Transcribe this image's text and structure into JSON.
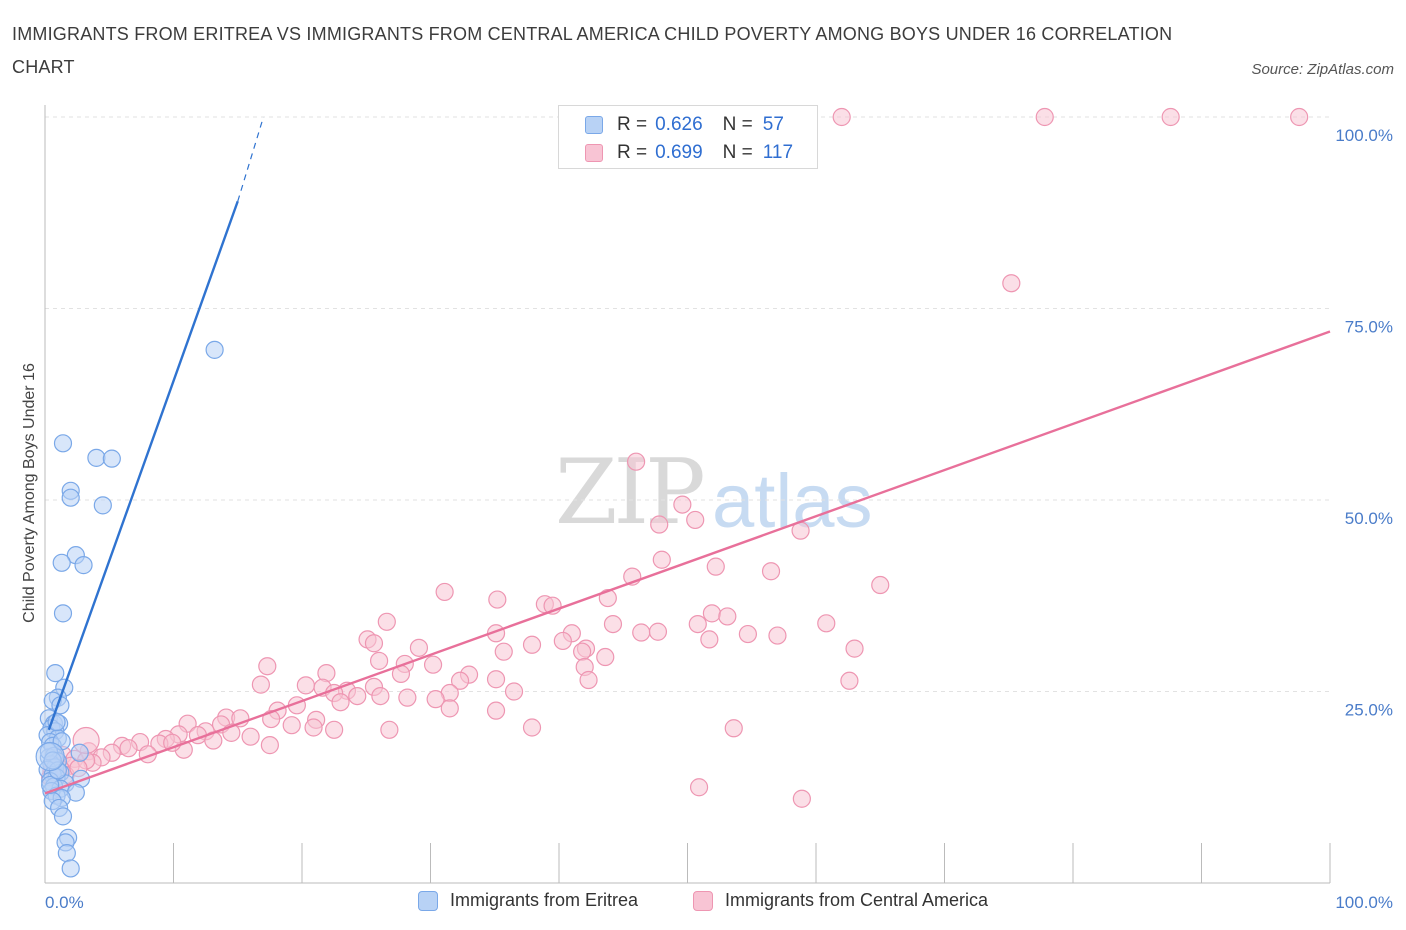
{
  "title": "IMMIGRANTS FROM ERITREA VS IMMIGRANTS FROM CENTRAL AMERICA CHILD POVERTY AMONG BOYS UNDER 16 CORRELATION CHART",
  "source": "Source: ZipAtlas.com",
  "watermark": {
    "zip": "ZIP",
    "atlas": "atlas"
  },
  "legend": {
    "r_label": "R =",
    "n_label": "N =",
    "series": [
      {
        "name": "Immigrants from Eritrea",
        "r": "0.626",
        "n": "57",
        "fill": "#b8d2f5",
        "stroke": "#7aa8e8"
      },
      {
        "name": "Immigrants from Central America",
        "r": "0.699",
        "n": "117",
        "fill": "#f8c4d4",
        "stroke": "#ee96b2"
      }
    ]
  },
  "colors": {
    "blue_line": "#2f73d0",
    "pink_line": "#e8709a",
    "tick_text": "#4a7cc9",
    "grid": "#e2e2e2"
  },
  "chart_data": {
    "type": "scatter",
    "title": "IMMIGRANTS FROM ERITREA VS IMMIGRANTS FROM CENTRAL AMERICA CHILD POVERTY AMONG BOYS UNDER 16 CORRELATION CHART",
    "xlabel": "",
    "ylabel": "Child Poverty Among Boys Under 16",
    "xlim": [
      0,
      100
    ],
    "ylim": [
      0,
      100
    ],
    "x_tick_labels": [
      "0.0%",
      "100.0%"
    ],
    "y_tick_labels": [
      "25.0%",
      "50.0%",
      "75.0%",
      "100.0%"
    ],
    "y_ticks": [
      25,
      50,
      75,
      100
    ],
    "series": [
      {
        "name": "Immigrants from Eritrea",
        "trend": {
          "x0": 0.3,
          "y0": 20.0,
          "x1": 15.0,
          "y1": 89.0,
          "dash_to_x": 17.0,
          "dash_to_y": 100.0
        },
        "points": [
          [
            13.2,
            69.6
          ],
          [
            1.4,
            57.4
          ],
          [
            4.0,
            55.5
          ],
          [
            5.2,
            55.4
          ],
          [
            2.0,
            51.2
          ],
          [
            2.0,
            50.3
          ],
          [
            4.5,
            49.3
          ],
          [
            2.4,
            42.8
          ],
          [
            1.3,
            41.8
          ],
          [
            3.0,
            41.5
          ],
          [
            1.4,
            35.2
          ],
          [
            0.8,
            27.4
          ],
          [
            1.5,
            25.5
          ],
          [
            1.0,
            24.2
          ],
          [
            0.6,
            23.8
          ],
          [
            1.2,
            23.2
          ],
          [
            0.3,
            21.5
          ],
          [
            0.7,
            20.8
          ],
          [
            1.1,
            20.8
          ],
          [
            0.5,
            20.2
          ],
          [
            0.8,
            19.8
          ],
          [
            0.2,
            19.3
          ],
          [
            1.0,
            18.9
          ],
          [
            0.4,
            18.4
          ],
          [
            0.6,
            17.9
          ],
          [
            2.7,
            17.0
          ],
          [
            0.3,
            16.4
          ],
          [
            0.7,
            16.6
          ],
          [
            1.0,
            15.9
          ],
          [
            0.5,
            15.5
          ],
          [
            0.8,
            15.1
          ],
          [
            0.2,
            14.8
          ],
          [
            1.2,
            14.4
          ],
          [
            0.6,
            14.1
          ],
          [
            0.9,
            13.8
          ],
          [
            2.8,
            13.6
          ],
          [
            0.4,
            13.3
          ],
          [
            1.6,
            13.0
          ],
          [
            0.7,
            12.6
          ],
          [
            1.2,
            12.3
          ],
          [
            0.5,
            12.0
          ],
          [
            2.4,
            11.8
          ],
          [
            0.9,
            11.4
          ],
          [
            1.3,
            11.1
          ],
          [
            0.6,
            10.7
          ],
          [
            1.1,
            9.8
          ],
          [
            1.4,
            8.7
          ],
          [
            1.8,
            5.9
          ],
          [
            1.6,
            5.3
          ],
          [
            1.7,
            3.9
          ],
          [
            2.0,
            1.9
          ],
          [
            0.3,
            17.2
          ],
          [
            0.9,
            21.0
          ],
          [
            1.3,
            18.5
          ],
          [
            0.4,
            12.8
          ],
          [
            1.0,
            14.7
          ],
          [
            0.6,
            16.0
          ]
        ]
      },
      {
        "name": "Immigrants from Central America",
        "trend": {
          "x0": 0,
          "y0": 11.7,
          "x1": 100,
          "y1": 72.0
        },
        "points": [
          [
            62.0,
            100
          ],
          [
            77.8,
            100
          ],
          [
            87.6,
            100
          ],
          [
            97.6,
            100
          ],
          [
            75.2,
            78.3
          ],
          [
            46.0,
            55.0
          ],
          [
            49.6,
            49.4
          ],
          [
            47.8,
            46.8
          ],
          [
            50.6,
            47.4
          ],
          [
            58.8,
            46.0
          ],
          [
            48.0,
            42.2
          ],
          [
            52.2,
            41.3
          ],
          [
            56.5,
            40.7
          ],
          [
            45.7,
            40.0
          ],
          [
            65.0,
            38.9
          ],
          [
            31.1,
            38.0
          ],
          [
            35.2,
            37.0
          ],
          [
            38.9,
            36.4
          ],
          [
            39.5,
            36.2
          ],
          [
            43.8,
            37.2
          ],
          [
            51.9,
            35.2
          ],
          [
            53.1,
            34.8
          ],
          [
            26.6,
            34.1
          ],
          [
            44.2,
            33.8
          ],
          [
            50.8,
            33.8
          ],
          [
            60.8,
            33.9
          ],
          [
            35.1,
            32.6
          ],
          [
            41.0,
            32.6
          ],
          [
            46.4,
            32.7
          ],
          [
            47.7,
            32.8
          ],
          [
            54.7,
            32.5
          ],
          [
            57.0,
            32.3
          ],
          [
            25.1,
            31.8
          ],
          [
            40.3,
            31.6
          ],
          [
            51.7,
            31.8
          ],
          [
            25.6,
            31.3
          ],
          [
            29.1,
            30.7
          ],
          [
            37.9,
            31.1
          ],
          [
            42.1,
            30.6
          ],
          [
            63.0,
            30.6
          ],
          [
            35.7,
            30.2
          ],
          [
            41.8,
            30.2
          ],
          [
            43.6,
            29.5
          ],
          [
            26.0,
            29.0
          ],
          [
            28.0,
            28.6
          ],
          [
            30.2,
            28.5
          ],
          [
            42.0,
            28.2
          ],
          [
            17.3,
            28.3
          ],
          [
            21.9,
            27.4
          ],
          [
            27.7,
            27.3
          ],
          [
            33.0,
            27.2
          ],
          [
            42.3,
            26.5
          ],
          [
            35.1,
            26.6
          ],
          [
            32.3,
            26.4
          ],
          [
            62.6,
            26.4
          ],
          [
            25.6,
            25.6
          ],
          [
            16.8,
            25.9
          ],
          [
            20.3,
            25.8
          ],
          [
            21.6,
            25.5
          ],
          [
            23.5,
            25.1
          ],
          [
            36.5,
            25.0
          ],
          [
            31.5,
            24.8
          ],
          [
            22.5,
            24.8
          ],
          [
            24.3,
            24.4
          ],
          [
            26.1,
            24.4
          ],
          [
            28.2,
            24.2
          ],
          [
            30.4,
            24.0
          ],
          [
            23.0,
            23.6
          ],
          [
            19.6,
            23.2
          ],
          [
            31.5,
            22.8
          ],
          [
            18.1,
            22.5
          ],
          [
            35.1,
            22.5
          ],
          [
            14.1,
            21.6
          ],
          [
            15.2,
            21.5
          ],
          [
            17.6,
            21.4
          ],
          [
            21.1,
            21.3
          ],
          [
            11.1,
            20.8
          ],
          [
            13.7,
            20.7
          ],
          [
            19.2,
            20.6
          ],
          [
            20.9,
            20.3
          ],
          [
            22.5,
            20.0
          ],
          [
            26.8,
            20.0
          ],
          [
            37.9,
            20.3
          ],
          [
            53.6,
            20.2
          ],
          [
            12.5,
            19.8
          ],
          [
            14.5,
            19.6
          ],
          [
            10.4,
            19.4
          ],
          [
            11.9,
            19.3
          ],
          [
            16.0,
            19.1
          ],
          [
            9.4,
            18.8
          ],
          [
            13.1,
            18.6
          ],
          [
            7.4,
            18.4
          ],
          [
            8.9,
            18.2
          ],
          [
            17.5,
            18.0
          ],
          [
            6.0,
            17.9
          ],
          [
            10.8,
            17.4
          ],
          [
            3.4,
            17.2
          ],
          [
            5.2,
            17.0
          ],
          [
            8.0,
            16.8
          ],
          [
            1.4,
            16.7
          ],
          [
            4.4,
            16.4
          ],
          [
            2.3,
            16.2
          ],
          [
            1.0,
            15.8
          ],
          [
            3.7,
            15.7
          ],
          [
            0.7,
            15.5
          ],
          [
            2.0,
            15.3
          ],
          [
            1.2,
            14.9
          ],
          [
            0.5,
            14.6
          ],
          [
            0.8,
            14.3
          ],
          [
            0.4,
            13.8
          ],
          [
            1.6,
            14.1
          ],
          [
            50.9,
            12.5
          ],
          [
            58.9,
            11.0
          ],
          [
            3.2,
            16.0
          ],
          [
            6.5,
            17.6
          ],
          [
            2.6,
            15.0
          ],
          [
            9.9,
            18.3
          ]
        ]
      }
    ]
  }
}
